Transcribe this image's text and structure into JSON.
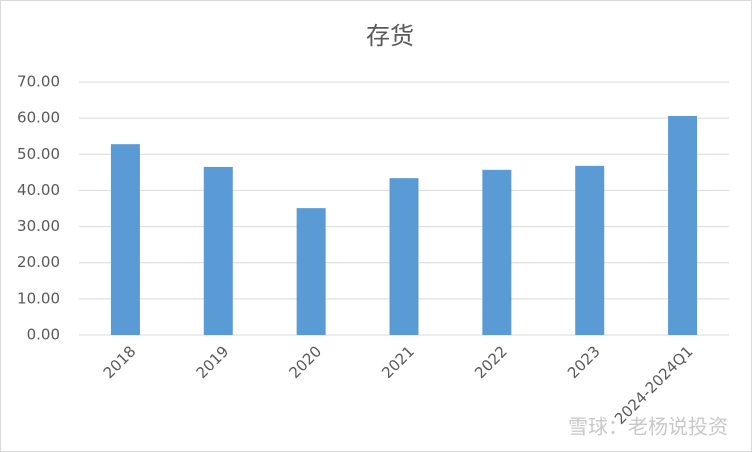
{
  "chart_data": {
    "type": "bar",
    "title": "存货",
    "categories": [
      "2018",
      "2019",
      "2020",
      "2021",
      "2022",
      "2023",
      "2024-2024Q1"
    ],
    "values": [
      52.8,
      46.5,
      35.1,
      43.4,
      45.7,
      46.8,
      60.6
    ],
    "color": "#5b9bd5",
    "ylim": [
      0,
      70
    ],
    "yticks": [
      {
        "value": 0,
        "label": "0.00"
      },
      {
        "value": 10,
        "label": "10.00"
      },
      {
        "value": 20,
        "label": "20.00"
      },
      {
        "value": 30,
        "label": "30.00"
      },
      {
        "value": 40,
        "label": "40.00"
      },
      {
        "value": 50,
        "label": "50.00"
      },
      {
        "value": 60,
        "label": "60.00"
      },
      {
        "value": 70,
        "label": "70.00"
      }
    ],
    "grid": true,
    "watermark": "雪球：老杨说投资"
  }
}
